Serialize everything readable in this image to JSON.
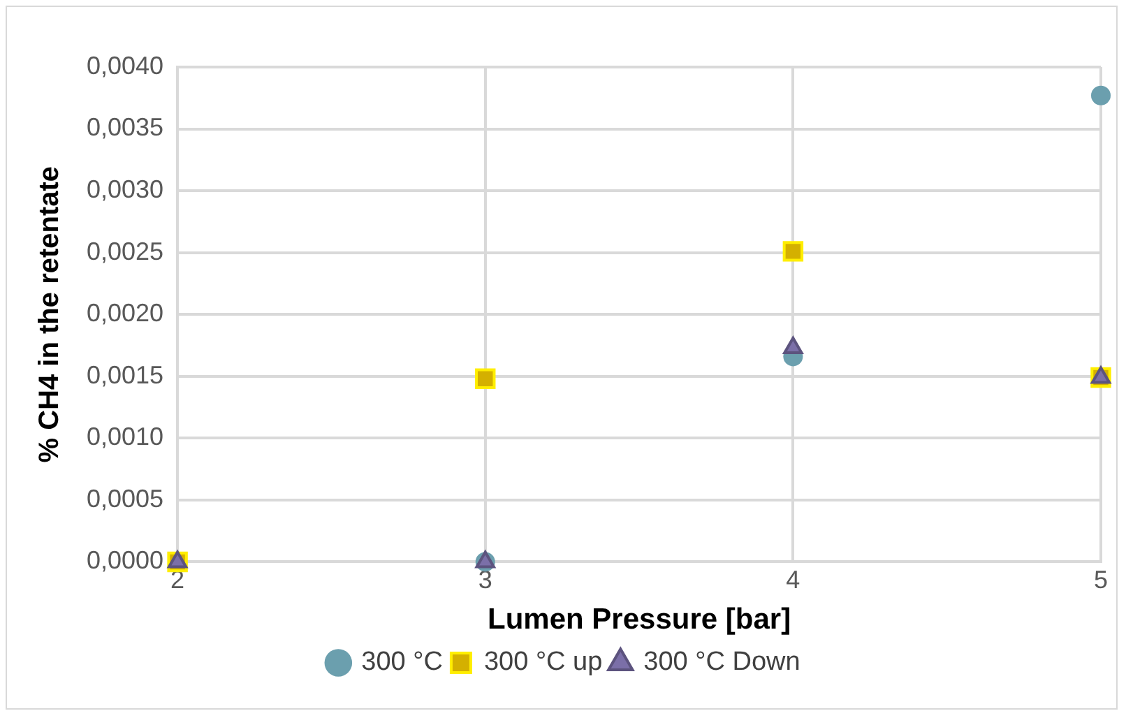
{
  "chart_data": {
    "type": "scatter",
    "xlabel": "Lumen Pressure [bar]",
    "ylabel": "% CH4 in the retentate",
    "x": [
      2,
      3,
      4,
      5
    ],
    "series": [
      {
        "name": "300 °C",
        "color": "#6b9fae",
        "marker": "circle",
        "values": [
          null,
          0,
          0.00166,
          0.00377
        ]
      },
      {
        "name": "300 °C up",
        "color": "#d4b000",
        "marker": "square",
        "values": [
          0,
          0.00148,
          0.00251,
          0.00149
        ]
      },
      {
        "name": "300 °C Down",
        "color": "#7b6fa8",
        "marker": "triangle",
        "values": [
          0,
          0,
          0.00173,
          0.00149
        ]
      }
    ],
    "xlim": [
      2,
      5
    ],
    "xticks": [
      2,
      3,
      4,
      5
    ],
    "ylim": [
      0,
      0.004
    ],
    "yticks": [
      {
        "value": 0,
        "label": "0,0000"
      },
      {
        "value": 0.0005,
        "label": "0,0005"
      },
      {
        "value": 0.001,
        "label": "0,0010"
      },
      {
        "value": 0.0015,
        "label": "0,0015"
      },
      {
        "value": 0.002,
        "label": "0,0020"
      },
      {
        "value": 0.0025,
        "label": "0,0025"
      },
      {
        "value": 0.003,
        "label": "0,0030"
      },
      {
        "value": 0.0035,
        "label": "0,0035"
      },
      {
        "value": 0.004,
        "label": "0,0040"
      }
    ],
    "grid": true,
    "legend": "bottom"
  }
}
